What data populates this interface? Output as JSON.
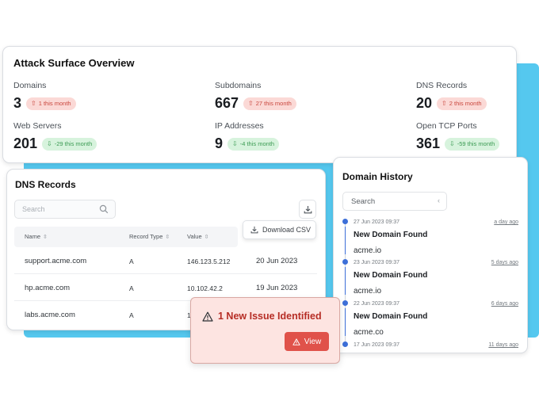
{
  "overview": {
    "title": "Attack Surface Overview",
    "stats": [
      {
        "label": "Domains",
        "value": "3",
        "trend": "up",
        "change": "1 this month",
        "status": "red"
      },
      {
        "label": "Subdomains",
        "value": "667",
        "trend": "up",
        "change": "27 this month",
        "status": "red"
      },
      {
        "label": "DNS Records",
        "value": "20",
        "trend": "up",
        "change": "2 this month",
        "status": "red"
      },
      {
        "label": "Web Servers",
        "value": "201",
        "trend": "down",
        "change": "-29 this month",
        "status": "green"
      },
      {
        "label": "IP Addresses",
        "value": "9",
        "trend": "down",
        "change": "-4 this month",
        "status": "green"
      },
      {
        "label": "Open TCP Ports",
        "value": "361",
        "trend": "down",
        "change": "-59 this month",
        "status": "green"
      }
    ]
  },
  "dns": {
    "title": "DNS Records",
    "search_placeholder": "Search",
    "download_csv_label": "Download CSV",
    "columns": [
      "Name",
      "Record Type",
      "Value"
    ],
    "rows": [
      {
        "name": "support.acme.com",
        "type": "A",
        "value": "146.123.5.212",
        "date": "20 Jun 2023"
      },
      {
        "name": "hp.acme.com",
        "type": "A",
        "value": "10.102.42.2",
        "date": "19 Jun 2023"
      },
      {
        "name": "labs.acme.com",
        "type": "A",
        "value": "14",
        "date": ""
      }
    ]
  },
  "history": {
    "title": "Domain History",
    "search_placeholder": "Search",
    "items": [
      {
        "timestamp": "27 Jun 2023 09:37",
        "ago": "a day ago",
        "event": "New Domain Found",
        "domain": "acme.io"
      },
      {
        "timestamp": "23 Jun 2023 09:37",
        "ago": "5 days ago",
        "event": "New Domain Found",
        "domain": "acme.io"
      },
      {
        "timestamp": "22 Jun 2023 09:37",
        "ago": "6 days ago",
        "event": "New Domain Found",
        "domain": "acme.co"
      },
      {
        "timestamp": "17 Jun 2023 09:37",
        "ago": "11 days ago",
        "event": "",
        "domain": ""
      }
    ]
  },
  "issue": {
    "title": "1 New Issue Identified",
    "view_label": "View"
  },
  "icons": {
    "trend_up": "arrow-up-icon",
    "trend_down": "arrow-down-icon",
    "search": "search-icon",
    "download": "download-icon",
    "warning": "warning-icon",
    "sort": "sort-icon",
    "chevron": "chevron-left-icon"
  },
  "colors": {
    "accent_blue": "#55c8ef",
    "timeline_blue": "#3d6fd8",
    "alert_red": "#e0524a",
    "badge_red_bg": "#fbd9d6",
    "badge_green_bg": "#d7f3dd"
  }
}
